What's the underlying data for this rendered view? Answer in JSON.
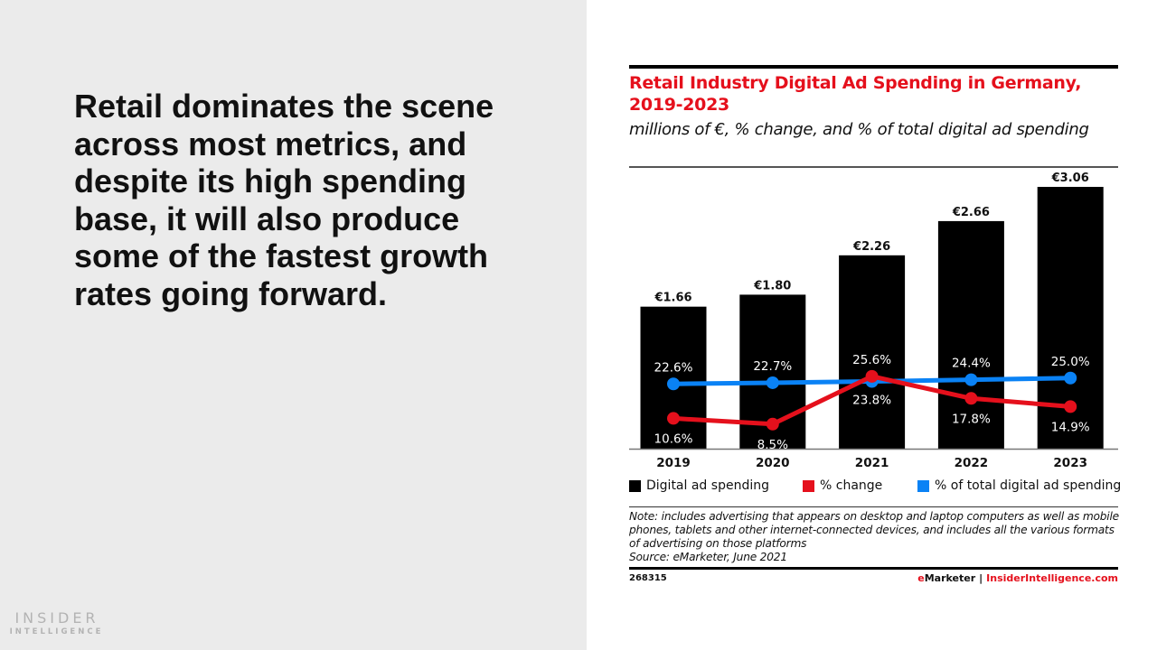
{
  "slide": {
    "headline": "Retail dominates the scene across most metrics, and despite its high spending base, it will also produce some of the fastest growth rates going forward.",
    "logo": {
      "line1": "INSIDER",
      "line2": "INTELLIGENCE"
    }
  },
  "colors": {
    "accent_red": "#e5101c",
    "accent_blue": "#0a82f5",
    "bar_black": "#000000",
    "panel_gray": "#ebebeb"
  },
  "chart_data": {
    "type": "bar",
    "title": "Retail Industry Digital Ad Spending in Germany, 2019-2023",
    "subtitle": "millions of €, % change, and % of total digital ad spending",
    "xlabel": "",
    "ylabel": "",
    "categories": [
      "2019",
      "2020",
      "2021",
      "2022",
      "2023"
    ],
    "grid": false,
    "legend_position": "bottom",
    "series": [
      {
        "name": "Digital ad spending",
        "type": "bar",
        "color": "#000000",
        "values": [
          1.66,
          1.8,
          2.26,
          2.66,
          3.06
        ],
        "labels": [
          "€1.66",
          "€1.80",
          "€2.26",
          "€2.66",
          "€3.06"
        ]
      },
      {
        "name": "% change",
        "type": "line",
        "color": "#e5101c",
        "values": [
          10.6,
          8.5,
          25.6,
          17.8,
          14.9
        ],
        "labels": [
          "10.6%",
          "8.5%",
          "25.6%",
          "17.8%",
          "14.9%"
        ]
      },
      {
        "name": "% of total digital ad spending",
        "type": "line",
        "color": "#0a82f5",
        "values": [
          22.6,
          22.7,
          23.8,
          24.4,
          25.0
        ],
        "labels": [
          "22.6%",
          "22.7%",
          "23.8%",
          "24.4%",
          "25.0%"
        ]
      }
    ],
    "note": "Note: includes advertising that appears on desktop and laptop computers as well as mobile phones, tablets and other internet-connected devices, and includes all the various formats of advertising on those platforms",
    "source": "Source: eMarketer, June 2021",
    "chart_id": "268315",
    "brand": {
      "left": "eMarketer",
      "separator": "|",
      "right": "InsiderIntelligence.com"
    }
  }
}
